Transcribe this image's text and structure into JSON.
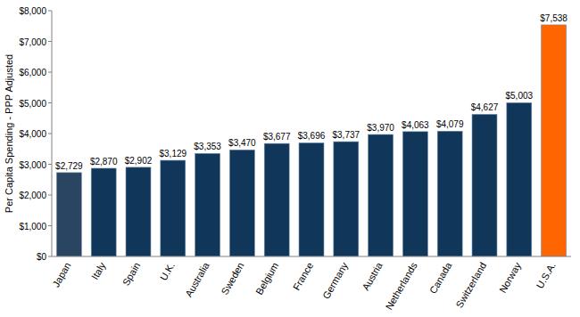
{
  "chart_data": {
    "type": "bar",
    "y_label": "Per Capita Spending - PPP Adjusted",
    "categories": [
      "Japan",
      "Italy",
      "Spain",
      "U.K.",
      "Australia",
      "Sweden",
      "Belgium",
      "France",
      "Germany",
      "Austria",
      "Netherlands",
      "Canada",
      "Switzerland",
      "Norway",
      "U.S.A."
    ],
    "values": [
      2729,
      2870,
      2902,
      3129,
      3353,
      3470,
      3677,
      3696,
      3737,
      3970,
      4063,
      4079,
      4627,
      5003,
      7538
    ],
    "value_labels": [
      "$2,729",
      "$2,870",
      "$2,902",
      "$3,129",
      "$3,353",
      "$3,470",
      "$3,677",
      "$3,696",
      "$3,737",
      "$3,970",
      "$4,063",
      "$4,079",
      "$4,627",
      "$5,003",
      "$7,538"
    ],
    "colors": [
      "#2A4562",
      "#10365A",
      "#10365A",
      "#10365A",
      "#10365A",
      "#10365A",
      "#10365A",
      "#10365A",
      "#10365A",
      "#10365A",
      "#10365A",
      "#10365A",
      "#10365A",
      "#10365A",
      "#FF6600"
    ],
    "ylim": [
      0,
      8000
    ],
    "yticks": [
      {
        "value": 0,
        "label": "$0"
      },
      {
        "value": 1000,
        "label": "$1,000"
      },
      {
        "value": 2000,
        "label": "$2,000"
      },
      {
        "value": 3000,
        "label": "$3,000"
      },
      {
        "value": 4000,
        "label": "$4,000"
      },
      {
        "value": 5000,
        "label": "$5,000"
      },
      {
        "value": 6000,
        "label": "$6,000"
      },
      {
        "value": 7000,
        "label": "$7,000"
      },
      {
        "value": 8000,
        "label": "$8,000"
      }
    ],
    "grid": false,
    "data_labels": true
  }
}
